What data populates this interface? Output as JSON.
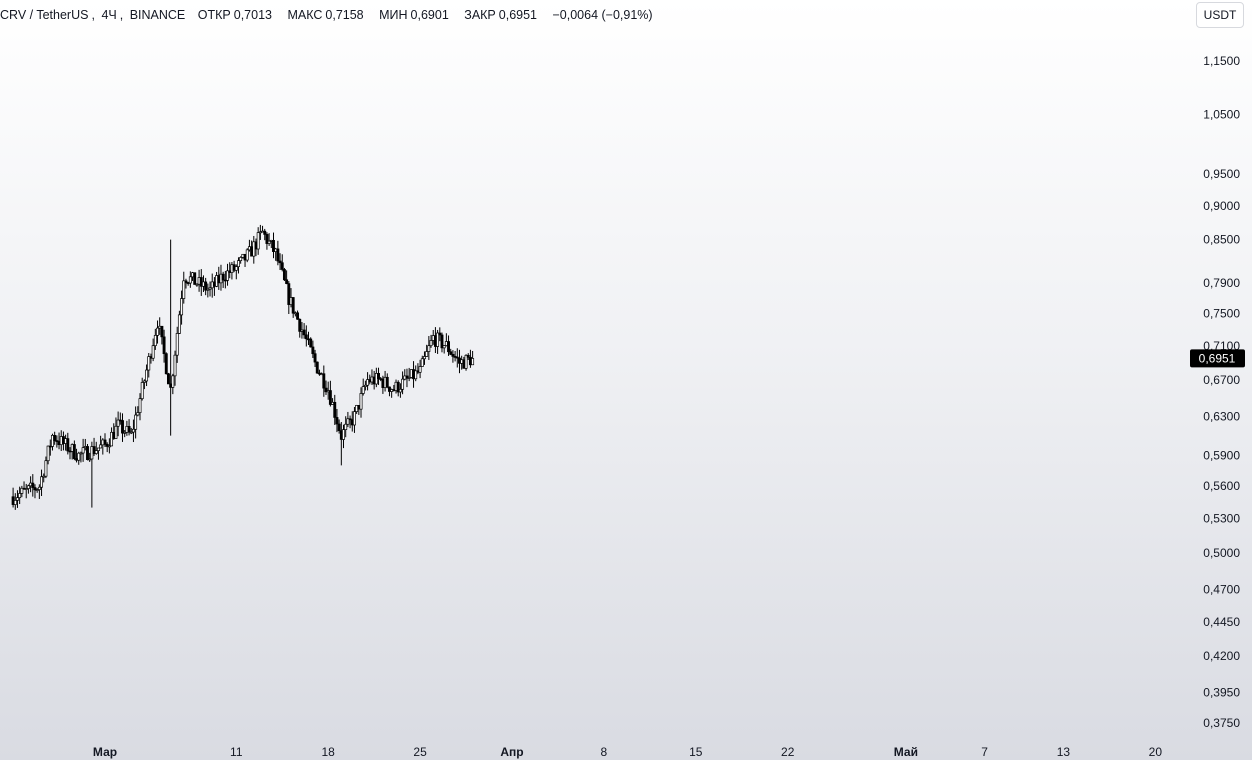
{
  "legend": {
    "symbol": "CRV / TetherUS",
    "interval": "4Ч",
    "exchange": "BINANCE",
    "open_label": "ОТКР",
    "open": "0,7013",
    "high_label": "МАКС",
    "high": "0,7158",
    "low_label": "МИН",
    "low": "0,6901",
    "close_label": "ЗАКР",
    "close": "0,6951",
    "change": "−0,0064 (−0,91%)"
  },
  "currency_button": "USDT",
  "chart_data": {
    "type": "candlestick",
    "y_scale": "log",
    "ylim": [
      0.36,
      1.2
    ],
    "y_ticks": [
      {
        "value": 1.15,
        "label": "1,1500"
      },
      {
        "value": 1.05,
        "label": "1,0500"
      },
      {
        "value": 0.95,
        "label": "0,9500"
      },
      {
        "value": 0.9,
        "label": "0,9000"
      },
      {
        "value": 0.85,
        "label": "0,8500"
      },
      {
        "value": 0.79,
        "label": "0,7900"
      },
      {
        "value": 0.75,
        "label": "0,7500"
      },
      {
        "value": 0.71,
        "label": "0,7100"
      },
      {
        "value": 0.67,
        "label": "0,6700"
      },
      {
        "value": 0.63,
        "label": "0,6300"
      },
      {
        "value": 0.59,
        "label": "0,5900"
      },
      {
        "value": 0.56,
        "label": "0,5600"
      },
      {
        "value": 0.53,
        "label": "0,5300"
      },
      {
        "value": 0.5,
        "label": "0,5000"
      },
      {
        "value": 0.47,
        "label": "0,4700"
      },
      {
        "value": 0.445,
        "label": "0,4450"
      },
      {
        "value": 0.42,
        "label": "0,4200"
      },
      {
        "value": 0.395,
        "label": "0,3950"
      },
      {
        "value": 0.375,
        "label": "0,3750"
      }
    ],
    "x_ticks": [
      {
        "date": "2024-03-01",
        "label": "Мар",
        "bold": true
      },
      {
        "date": "2024-03-11",
        "label": "11",
        "bold": false
      },
      {
        "date": "2024-03-18",
        "label": "18",
        "bold": false
      },
      {
        "date": "2024-03-25",
        "label": "25",
        "bold": false
      },
      {
        "date": "2024-04-01",
        "label": "Апр",
        "bold": true
      },
      {
        "date": "2024-04-08",
        "label": "8",
        "bold": false
      },
      {
        "date": "2024-04-15",
        "label": "15",
        "bold": false
      },
      {
        "date": "2024-04-22",
        "label": "22",
        "bold": false
      },
      {
        "date": "2024-05-01",
        "label": "Май",
        "bold": true
      },
      {
        "date": "2024-05-07",
        "label": "7",
        "bold": false
      },
      {
        "date": "2024-05-13",
        "label": "13",
        "bold": false
      },
      {
        "date": "2024-05-20",
        "label": "20",
        "bold": false
      }
    ],
    "last_price": {
      "value": 0.6951,
      "label": "0,6951"
    },
    "trend": [
      {
        "date": "2024-02-23",
        "close": 0.55
      },
      {
        "date": "2024-02-25",
        "close": 0.56
      },
      {
        "date": "2024-02-26",
        "close": 0.61
      },
      {
        "date": "2024-02-28",
        "close": 0.59
      },
      {
        "date": "2024-03-01",
        "close": 0.6
      },
      {
        "date": "2024-03-02",
        "close": 0.62
      },
      {
        "date": "2024-03-03",
        "close": 0.61
      },
      {
        "date": "2024-03-04",
        "close": 0.67
      },
      {
        "date": "2024-03-05",
        "close": 0.74
      },
      {
        "date": "2024-03-06",
        "close": 0.66
      },
      {
        "date": "2024-03-07",
        "close": 0.8
      },
      {
        "date": "2024-03-08",
        "close": 0.79
      },
      {
        "date": "2024-03-09",
        "close": 0.78
      },
      {
        "date": "2024-03-10",
        "close": 0.8
      },
      {
        "date": "2024-03-11",
        "close": 0.81
      },
      {
        "date": "2024-03-12",
        "close": 0.83
      },
      {
        "date": "2024-03-13",
        "close": 0.86
      },
      {
        "date": "2024-03-14",
        "close": 0.83
      },
      {
        "date": "2024-03-15",
        "close": 0.77
      },
      {
        "date": "2024-03-16",
        "close": 0.73
      },
      {
        "date": "2024-03-17",
        "close": 0.69
      },
      {
        "date": "2024-03-18",
        "close": 0.66
      },
      {
        "date": "2024-03-19",
        "close": 0.61
      },
      {
        "date": "2024-03-20",
        "close": 0.63
      },
      {
        "date": "2024-03-21",
        "close": 0.67
      },
      {
        "date": "2024-03-22",
        "close": 0.67
      },
      {
        "date": "2024-03-23",
        "close": 0.66
      },
      {
        "date": "2024-03-24",
        "close": 0.67
      },
      {
        "date": "2024-03-25",
        "close": 0.68
      },
      {
        "date": "2024-03-26",
        "close": 0.72
      },
      {
        "date": "2024-03-27",
        "close": 0.71
      },
      {
        "date": "2024-03-28",
        "close": 0.69
      },
      {
        "date": "2024-03-29",
        "close": 0.6951
      }
    ],
    "bar_interval_hours": 4,
    "volatility": 0.012,
    "spike_highs": [
      {
        "date": "2024-03-06",
        "high": 0.85
      },
      {
        "date": "2024-03-13",
        "high": 0.87
      }
    ],
    "spike_lows": [
      {
        "date": "2024-02-29",
        "low": 0.54
      },
      {
        "date": "2024-03-06",
        "low": 0.61
      },
      {
        "date": "2024-03-19",
        "low": 0.58
      }
    ]
  }
}
